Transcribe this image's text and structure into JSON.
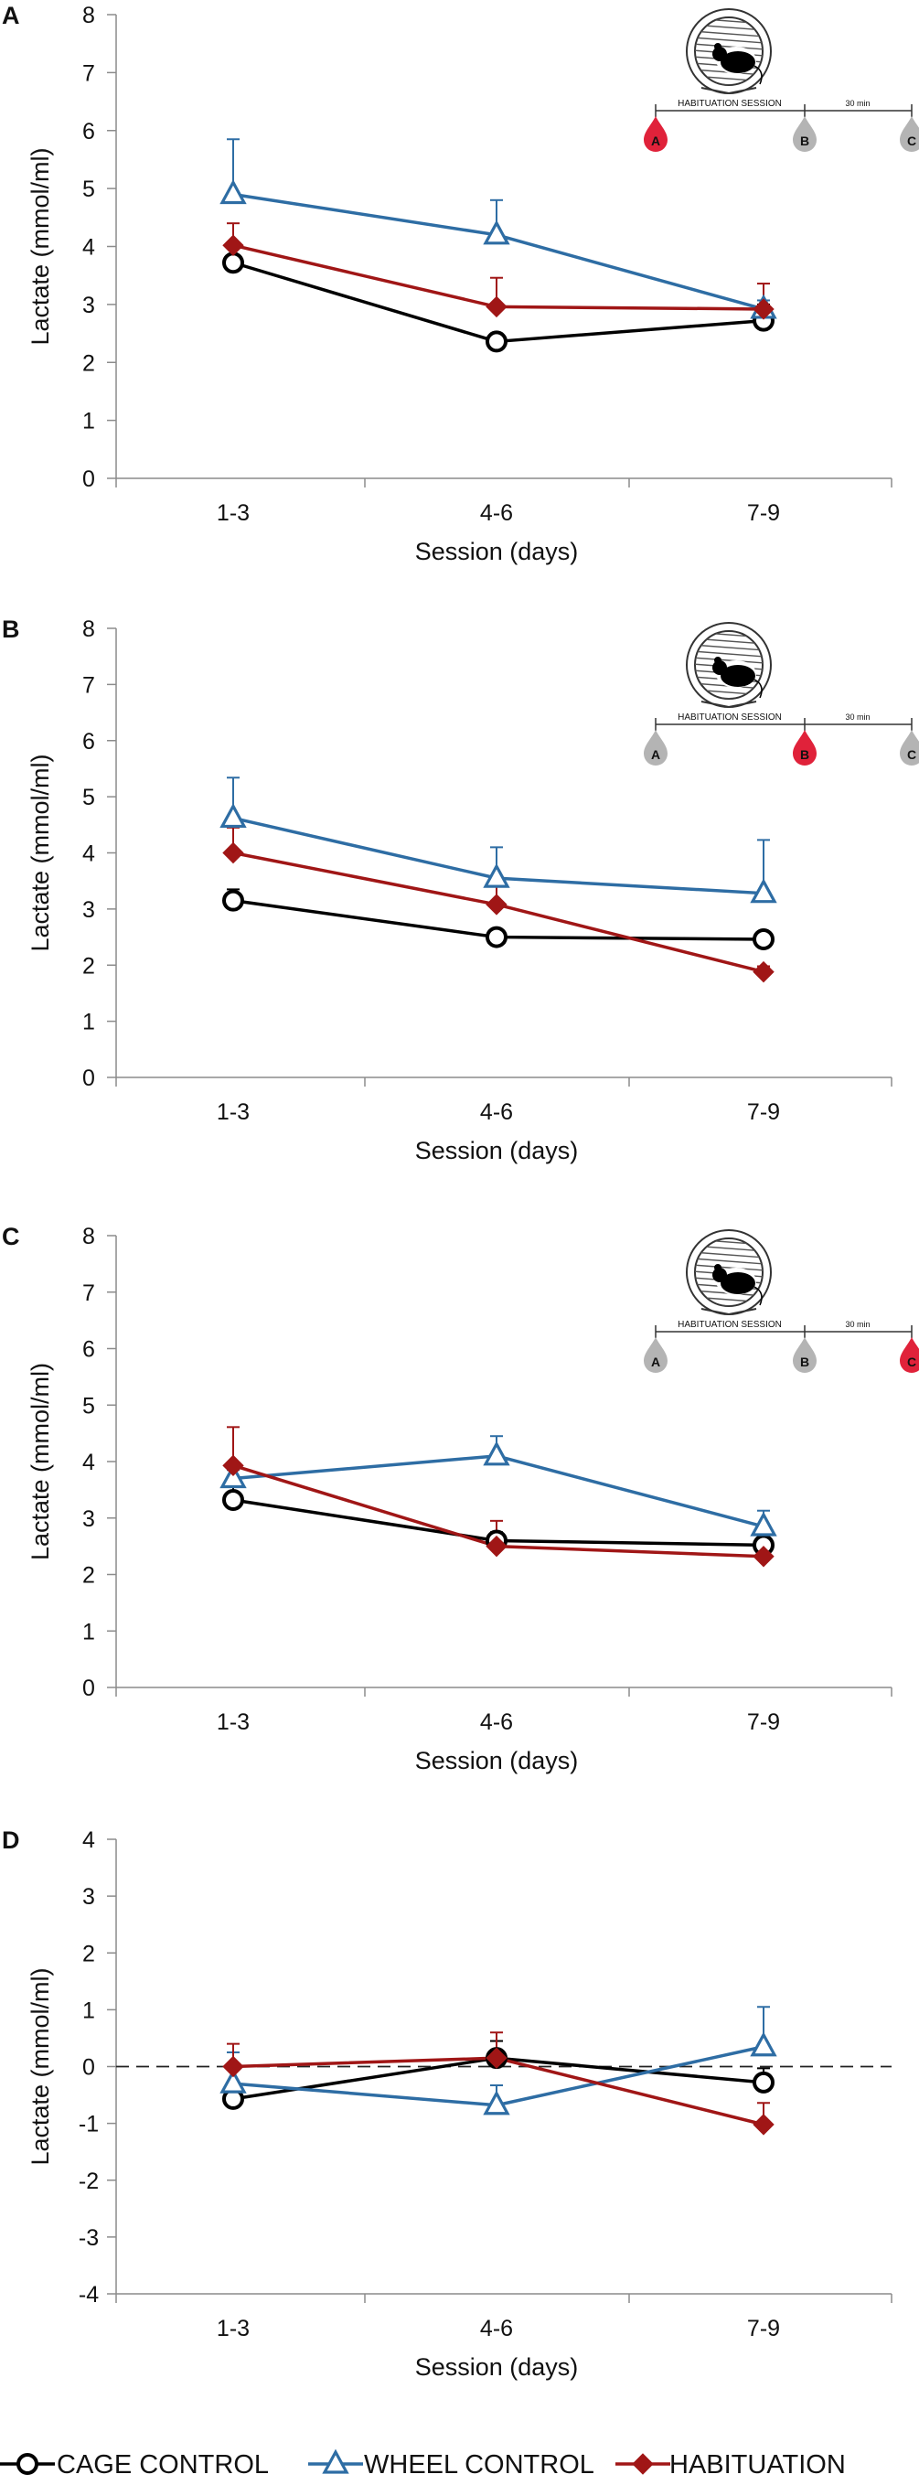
{
  "figure": {
    "x_label": "Session (days)",
    "y_label": "Lactate (mmol/ml)",
    "colors": {
      "cage": "#000000",
      "wheel": "#2E6DA4",
      "habit": "#A01616",
      "accent": "#E0223A",
      "gray": "#B4B4B4",
      "axis": "#8C8C8C"
    }
  },
  "inset": {
    "habituation_label": "HABITUATION SESSION",
    "interval_label": "30 min",
    "points": [
      "A",
      "B",
      "C"
    ]
  },
  "legend": {
    "cage": "CAGE CONTROL",
    "wheel": "WHEEL CONTROL",
    "habit": "HABITUATION"
  },
  "chart_data": [
    {
      "panel": "A",
      "type": "line",
      "highlight": "A",
      "categories": [
        "1-3",
        "4-6",
        "7-9"
      ],
      "ylim": [
        0,
        8
      ],
      "yticks": [
        0,
        1,
        2,
        3,
        4,
        5,
        6,
        7,
        8
      ],
      "xlabel": "Session (days)",
      "ylabel": "Lactate (mmol/ml)",
      "dashed_zero": false,
      "series": [
        {
          "name": "CAGE CONTROL",
          "key": "cage",
          "marker": "circle",
          "values": [
            3.72,
            2.36,
            2.72
          ],
          "errors": [
            0.12,
            0.1,
            0.28
          ]
        },
        {
          "name": "WHEEL CONTROL",
          "key": "wheel",
          "marker": "triangle",
          "values": [
            4.9,
            4.2,
            2.92
          ],
          "errors": [
            0.95,
            0.6,
            0.15
          ]
        },
        {
          "name": "HABITUATION",
          "key": "habit",
          "marker": "diamond",
          "values": [
            4.02,
            2.96,
            2.92
          ],
          "errors": [
            0.38,
            0.5,
            0.44
          ]
        }
      ]
    },
    {
      "panel": "B",
      "type": "line",
      "highlight": "B",
      "categories": [
        "1-3",
        "4-6",
        "7-9"
      ],
      "ylim": [
        0,
        8
      ],
      "yticks": [
        0,
        1,
        2,
        3,
        4,
        5,
        6,
        7,
        8
      ],
      "xlabel": "Session (days)",
      "ylabel": "Lactate (mmol/ml)",
      "dashed_zero": false,
      "series": [
        {
          "name": "CAGE CONTROL",
          "key": "cage",
          "marker": "circle",
          "values": [
            3.15,
            2.5,
            2.46
          ],
          "errors": [
            0.2,
            0.12,
            0.1
          ]
        },
        {
          "name": "WHEEL CONTROL",
          "key": "wheel",
          "marker": "triangle",
          "values": [
            4.62,
            3.55,
            3.28
          ],
          "errors": [
            0.72,
            0.55,
            0.95
          ]
        },
        {
          "name": "HABITUATION",
          "key": "habit",
          "marker": "diamond",
          "values": [
            4.0,
            3.08,
            1.88
          ],
          "errors": [
            0.45,
            0.35,
            0.1
          ]
        }
      ]
    },
    {
      "panel": "C",
      "type": "line",
      "highlight": "C",
      "categories": [
        "1-3",
        "4-6",
        "7-9"
      ],
      "ylim": [
        0,
        8
      ],
      "yticks": [
        0,
        1,
        2,
        3,
        4,
        5,
        6,
        7,
        8
      ],
      "xlabel": "Session (days)",
      "ylabel": "Lactate (mmol/ml)",
      "dashed_zero": false,
      "series": [
        {
          "name": "CAGE CONTROL",
          "key": "cage",
          "marker": "circle",
          "values": [
            3.32,
            2.6,
            2.52
          ],
          "errors": [
            0.3,
            0.15,
            0.1
          ]
        },
        {
          "name": "WHEEL CONTROL",
          "key": "wheel",
          "marker": "triangle",
          "values": [
            3.7,
            4.1,
            2.85
          ],
          "errors": [
            0.15,
            0.35,
            0.28
          ]
        },
        {
          "name": "HABITUATION",
          "key": "habit",
          "marker": "diamond",
          "values": [
            3.93,
            2.5,
            2.32
          ],
          "errors": [
            0.68,
            0.45,
            0.15
          ]
        }
      ]
    },
    {
      "panel": "D",
      "type": "line",
      "highlight": null,
      "categories": [
        "1-3",
        "4-6",
        "7-9"
      ],
      "ylim": [
        -4,
        4
      ],
      "yticks": [
        -4,
        -3,
        -2,
        -1,
        0,
        1,
        2,
        3,
        4
      ],
      "xlabel": "Session (days)",
      "ylabel": "Lactate (mmol/ml)",
      "dashed_zero": true,
      "series": [
        {
          "name": "CAGE CONTROL",
          "key": "cage",
          "marker": "circle",
          "values": [
            -0.57,
            0.15,
            -0.28
          ],
          "errors": [
            0.25,
            0.3,
            0.25
          ]
        },
        {
          "name": "WHEEL CONTROL",
          "key": "wheel",
          "marker": "triangle",
          "values": [
            -0.3,
            -0.68,
            0.35
          ],
          "errors": [
            0.55,
            0.35,
            0.7
          ]
        },
        {
          "name": "HABITUATION",
          "key": "habit",
          "marker": "diamond",
          "values": [
            0.0,
            0.15,
            -1.02
          ],
          "errors": [
            0.4,
            0.45,
            0.38
          ]
        }
      ]
    }
  ]
}
